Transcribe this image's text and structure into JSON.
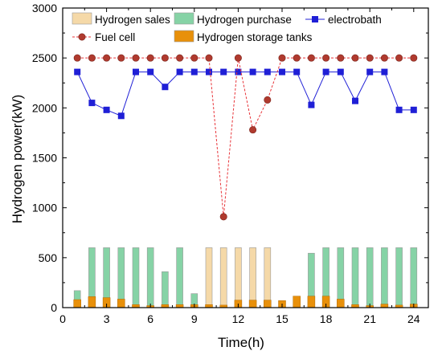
{
  "chart_data": {
    "type": "bar",
    "xlabel": "Time(h)",
    "ylabel": "Hydrogen power(kW)",
    "xlim": [
      0,
      25
    ],
    "ylim": [
      0,
      3000
    ],
    "xticks": [
      0,
      3,
      6,
      9,
      12,
      15,
      18,
      21,
      24
    ],
    "yticks": [
      0,
      500,
      1000,
      1500,
      2000,
      2500,
      3000
    ],
    "x": [
      1,
      2,
      3,
      4,
      5,
      6,
      7,
      8,
      9,
      10,
      11,
      12,
      13,
      14,
      15,
      16,
      17,
      18,
      19,
      20,
      21,
      22,
      23,
      24
    ],
    "legend_position": "top",
    "series": [
      {
        "name": "Hydrogen sales",
        "kind": "bar",
        "color": "#f5d9a8",
        "values": [
          0,
          0,
          0,
          0,
          0,
          0,
          0,
          0,
          0,
          600,
          600,
          600,
          600,
          600,
          0,
          0,
          0,
          0,
          0,
          0,
          0,
          0,
          0,
          0
        ]
      },
      {
        "name": "Hydrogen purchase",
        "kind": "bar",
        "color": "#86d3a6",
        "values": [
          170,
          600,
          600,
          600,
          600,
          600,
          360,
          600,
          140,
          0,
          0,
          0,
          0,
          0,
          0,
          0,
          545,
          600,
          600,
          600,
          600,
          600,
          600,
          600
        ]
      },
      {
        "name": "Hydrogen storage tanks",
        "kind": "bar",
        "color": "#e8900a",
        "values": [
          80,
          110,
          100,
          85,
          30,
          20,
          30,
          30,
          30,
          30,
          25,
          75,
          75,
          75,
          70,
          115,
          115,
          115,
          85,
          30,
          20,
          35,
          25,
          35
        ]
      },
      {
        "name": "electrobath",
        "kind": "line",
        "color": "#1f1fd6",
        "marker": "square",
        "values": [
          2360,
          2050,
          1980,
          1920,
          2360,
          2360,
          2210,
          2360,
          2360,
          2360,
          2360,
          2360,
          2360,
          2360,
          2360,
          2360,
          2030,
          2360,
          2360,
          2070,
          2360,
          2360,
          1980,
          1980
        ]
      },
      {
        "name": "Fuel cell",
        "kind": "line",
        "color": "#e8353a",
        "marker": "circle",
        "marker_color": "#b03a2e",
        "values": [
          2500,
          2500,
          2500,
          2500,
          2500,
          2500,
          2500,
          2500,
          2500,
          2500,
          910,
          2500,
          1780,
          2080,
          2500,
          2500,
          2500,
          2500,
          2500,
          2500,
          2500,
          2500,
          2500,
          2500
        ]
      }
    ]
  }
}
